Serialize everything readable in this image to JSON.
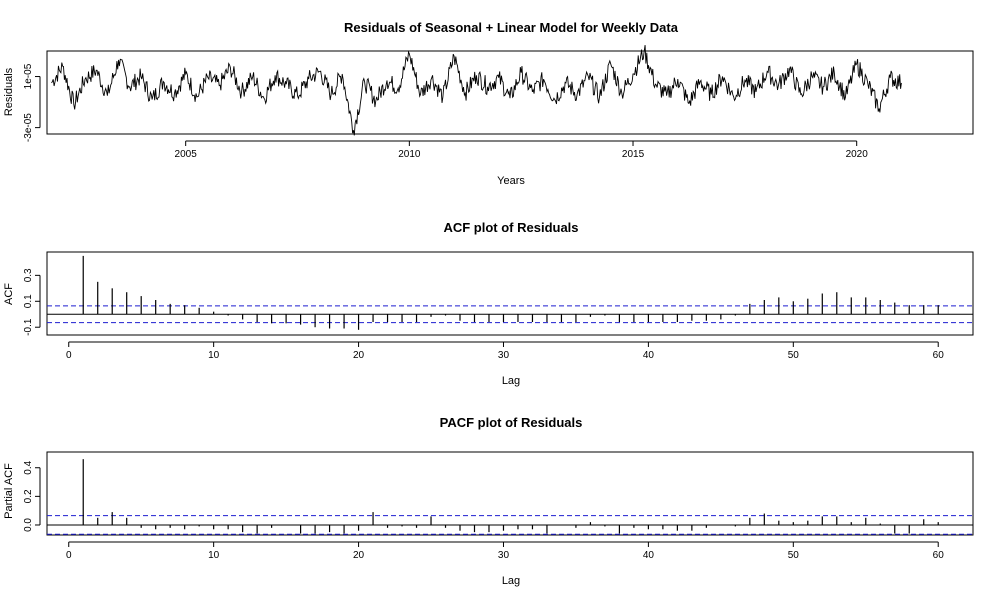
{
  "chart_data": [
    {
      "type": "line",
      "title": "Residuals of Seasonal + Linear Model for Weekly Data",
      "xlabel": "Years",
      "ylabel": "Residuals",
      "xlim": [
        2001.9,
        2022.6
      ],
      "ylim": [
        -3.5e-05,
        3e-05
      ],
      "x_ticks": [
        2005,
        2010,
        2015,
        2020
      ],
      "x_tick_labels": [
        "2005",
        "2010",
        "2015",
        "2020"
      ],
      "y_ticks": [
        -3e-05,
        1e-05
      ],
      "y_tick_labels": [
        "-3e-05",
        "1e-05"
      ],
      "grid": false,
      "series": [
        {
          "x": [
            2002.0,
            2002.25,
            2002.5,
            2002.75,
            2003.0,
            2003.25,
            2003.5,
            2003.75,
            2004.0,
            2004.25,
            2004.5,
            2004.75,
            2005.0,
            2005.25,
            2005.5,
            2005.75,
            2006.0,
            2006.25,
            2006.5,
            2006.75,
            2007.0,
            2007.25,
            2007.5,
            2007.75,
            2008.0,
            2008.25,
            2008.5,
            2008.75,
            2009.0,
            2009.25,
            2009.5,
            2009.75,
            2010.0,
            2010.25,
            2010.5,
            2010.75,
            2011.0,
            2011.25,
            2011.5,
            2011.75,
            2012.0,
            2012.25,
            2012.5,
            2012.75,
            2013.0,
            2013.25,
            2013.5,
            2013.75,
            2014.0,
            2014.25,
            2014.5,
            2014.75,
            2015.0,
            2015.25,
            2015.5,
            2015.75,
            2016.0,
            2016.25,
            2016.5,
            2016.75,
            2017.0,
            2017.25,
            2017.5,
            2017.75,
            2018.0,
            2018.25,
            2018.5,
            2018.75,
            2019.0,
            2019.25,
            2019.5,
            2019.75,
            2020.0,
            2020.25,
            2020.5,
            2020.75,
            2021.0
          ],
          "values": [
            5e-06,
            1.8e-05,
            -1.2e-05,
            8e-06,
            1.5e-05,
            -5e-06,
            2.3e-05,
            2e-06,
            1e-05,
            -8e-06,
            6e-06,
            -3e-06,
            1.2e-05,
            -6e-06,
            9e-06,
            3e-06,
            1.7e-05,
            -2e-06,
            1e-05,
            -7e-06,
            1.1e-05,
            4e-06,
            -5e-06,
            8e-06,
            1.4e-05,
            -4e-06,
            1.2e-05,
            -3.2e-05,
            6e-06,
            -9e-06,
            7e-06,
            1e-06,
            2.8e-05,
            -4e-06,
            9e-06,
            -6e-06,
            2.6e-05,
            -3e-06,
            1.1e-05,
            2e-06,
            9e-06,
            -7e-06,
            1.3e-05,
            -2e-06,
            8e-06,
            -8e-06,
            5e-06,
            -4e-06,
            1e-05,
            -6e-06,
            2e-05,
            -3e-06,
            1.2e-05,
            3e-05,
            4e-06,
            -5e-06,
            8e-06,
            -1.1e-05,
            6e-06,
            -4e-06,
            1e-05,
            -6e-06,
            7e-06,
            -2e-06,
            1.4e-05,
            3e-06,
            1.6e-05,
            -4e-06,
            1e-05,
            2e-06,
            1.3e-05,
            -6e-06,
            2e-05,
            4e-06,
            -1.5e-05,
            9e-06,
            5e-06
          ]
        }
      ]
    },
    {
      "type": "bar",
      "title": "ACF plot of Residuals",
      "xlabel": "Lag",
      "ylabel": "ACF",
      "xlim": [
        -1.5,
        62.4
      ],
      "ylim": [
        -0.16,
        0.48
      ],
      "x_ticks": [
        0,
        10,
        20,
        30,
        40,
        50,
        60
      ],
      "x_tick_labels": [
        "0",
        "10",
        "20",
        "30",
        "40",
        "50",
        "60"
      ],
      "y_ticks": [
        -0.1,
        0.1,
        0.3
      ],
      "y_tick_labels": [
        "-0.1",
        "0.1",
        "0.3"
      ],
      "ci": 0.065,
      "lags": [
        1,
        2,
        3,
        4,
        5,
        6,
        7,
        8,
        9,
        10,
        11,
        12,
        13,
        14,
        15,
        16,
        17,
        18,
        19,
        20,
        21,
        22,
        23,
        24,
        25,
        26,
        27,
        28,
        29,
        30,
        31,
        32,
        33,
        34,
        35,
        36,
        37,
        38,
        39,
        40,
        41,
        42,
        43,
        44,
        45,
        46,
        47,
        48,
        49,
        50,
        51,
        52,
        53,
        54,
        55,
        56,
        57,
        58,
        59,
        60
      ],
      "values": [
        0.45,
        0.25,
        0.2,
        0.17,
        0.14,
        0.11,
        0.08,
        0.07,
        0.05,
        0.02,
        -0.01,
        -0.04,
        -0.06,
        -0.07,
        -0.07,
        -0.08,
        -0.1,
        -0.11,
        -0.11,
        -0.12,
        -0.06,
        -0.06,
        -0.06,
        -0.06,
        -0.02,
        -0.01,
        -0.05,
        -0.06,
        -0.06,
        -0.06,
        -0.06,
        -0.06,
        -0.06,
        -0.06,
        -0.06,
        -0.02,
        -0.01,
        -0.06,
        -0.06,
        -0.06,
        -0.06,
        -0.06,
        -0.05,
        -0.05,
        -0.04,
        -0.01,
        0.08,
        0.11,
        0.13,
        0.1,
        0.12,
        0.16,
        0.17,
        0.13,
        0.13,
        0.11,
        0.09,
        0.07,
        0.07,
        0.07
      ]
    },
    {
      "type": "bar",
      "title": "PACF plot of Residuals",
      "xlabel": "Lag",
      "ylabel": "Partial ACF",
      "xlim": [
        -1.5,
        62.4
      ],
      "ylim": [
        -0.07,
        0.51
      ],
      "x_ticks": [
        0,
        10,
        20,
        30,
        40,
        50,
        60
      ],
      "x_tick_labels": [
        "0",
        "10",
        "20",
        "30",
        "40",
        "50",
        "60"
      ],
      "y_ticks": [
        0.0,
        0.2,
        0.4
      ],
      "y_tick_labels": [
        "0.0",
        "0.2",
        "0.4"
      ],
      "ci": 0.065,
      "lags": [
        1,
        2,
        3,
        4,
        5,
        6,
        7,
        8,
        9,
        10,
        11,
        12,
        13,
        14,
        15,
        16,
        17,
        18,
        19,
        20,
        21,
        22,
        23,
        24,
        25,
        26,
        27,
        28,
        29,
        30,
        31,
        32,
        33,
        34,
        35,
        36,
        37,
        38,
        39,
        40,
        41,
        42,
        43,
        44,
        45,
        46,
        47,
        48,
        49,
        50,
        51,
        52,
        53,
        54,
        55,
        56,
        57,
        58,
        59,
        60
      ],
      "values": [
        0.46,
        0.05,
        0.09,
        0.05,
        -0.02,
        -0.03,
        -0.02,
        -0.03,
        -0.01,
        -0.03,
        -0.03,
        -0.05,
        -0.06,
        -0.02,
        0.0,
        -0.06,
        -0.06,
        -0.05,
        -0.06,
        -0.04,
        0.09,
        -0.02,
        -0.01,
        -0.02,
        0.06,
        -0.02,
        -0.04,
        -0.05,
        -0.05,
        -0.04,
        -0.03,
        -0.03,
        -0.06,
        0.0,
        -0.02,
        0.02,
        -0.01,
        -0.06,
        -0.02,
        -0.03,
        -0.03,
        -0.04,
        -0.04,
        -0.02,
        0.0,
        -0.01,
        0.05,
        0.08,
        0.03,
        0.02,
        0.03,
        0.06,
        0.06,
        0.02,
        0.05,
        0.01,
        -0.06,
        -0.06,
        0.04,
        0.02
      ]
    }
  ]
}
